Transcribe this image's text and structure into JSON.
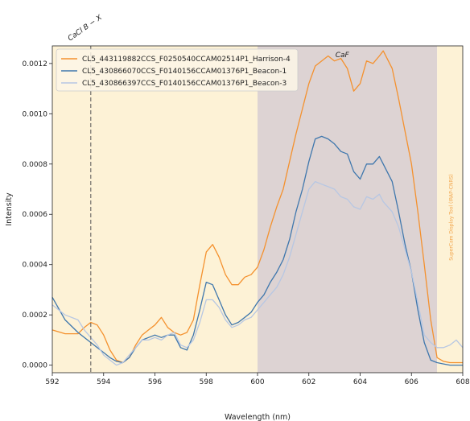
{
  "chart_data": {
    "type": "line",
    "xlabel": "Wavelength (nm)",
    "ylabel": "Intensity",
    "xlim": [
      592,
      608
    ],
    "ylim": [
      -3e-05,
      0.00127
    ],
    "xticks": [
      592,
      594,
      596,
      598,
      600,
      602,
      604,
      606,
      608
    ],
    "yticks": [
      0.0,
      0.0002,
      0.0004,
      0.0006,
      0.0008,
      0.001,
      0.0012
    ],
    "ytick_labels": [
      "0.0000",
      "0.0002",
      "0.0004",
      "0.0006",
      "0.0008",
      "0.0010",
      "0.0012"
    ],
    "grid": false,
    "legend_position": "top-left",
    "regions": [
      {
        "x0": 592,
        "x1": 600,
        "color": "#fdf2d6"
      },
      {
        "x0": 600,
        "x1": 607,
        "color": "#ddd3d3",
        "label": "CaF"
      },
      {
        "x0": 607,
        "x1": 608,
        "color": "#fdf2d6"
      }
    ],
    "vline": {
      "x": 593.5,
      "label": "CaCl B − X",
      "style": "dashed"
    },
    "watermark": "SuperCam Display Tool (IRAP-CNRS)",
    "series": [
      {
        "name": "CL5_443119882CCS_F0250540CCAM02514P1_Harrison-4",
        "color": "#f4912e",
        "x": [
          592.0,
          592.5,
          593.0,
          593.25,
          593.5,
          593.75,
          594.0,
          594.25,
          594.5,
          594.75,
          595.0,
          595.25,
          595.5,
          595.75,
          596.0,
          596.25,
          596.5,
          596.75,
          597.0,
          597.25,
          597.5,
          597.75,
          598.0,
          598.25,
          598.5,
          598.75,
          599.0,
          599.25,
          599.5,
          599.75,
          600.0,
          600.25,
          600.5,
          600.75,
          601.0,
          601.25,
          601.5,
          601.75,
          602.0,
          602.25,
          602.5,
          602.75,
          603.0,
          603.25,
          603.5,
          603.75,
          604.0,
          604.25,
          604.5,
          604.75,
          604.9,
          605.25,
          605.5,
          605.75,
          606.0,
          606.25,
          606.5,
          606.75,
          607.0,
          607.25,
          607.5,
          607.75,
          608.0
        ],
        "y": [
          0.00014,
          0.000125,
          0.000125,
          0.00015,
          0.00017,
          0.00016,
          0.00012,
          6e-05,
          2e-05,
          1e-05,
          3e-05,
          8e-05,
          0.00012,
          0.00014,
          0.00016,
          0.00019,
          0.00015,
          0.00013,
          0.00012,
          0.00013,
          0.00018,
          0.00032,
          0.00045,
          0.00048,
          0.00043,
          0.00036,
          0.00032,
          0.00032,
          0.00035,
          0.00036,
          0.00039,
          0.00046,
          0.00055,
          0.00063,
          0.0007,
          0.00081,
          0.00092,
          0.00102,
          0.00112,
          0.00119,
          0.00121,
          0.00123,
          0.00121,
          0.00122,
          0.00118,
          0.00109,
          0.00112,
          0.00121,
          0.0012,
          0.00123,
          0.00125,
          0.00118,
          0.00106,
          0.00093,
          0.0008,
          0.00061,
          0.0004,
          0.00018,
          3e-05,
          1.5e-05,
          1e-05,
          1e-05,
          1e-05
        ]
      },
      {
        "name": "CL5_430866070CCS_F0140156CCAM01376P1_Beacon-1",
        "color": "#3f77ad",
        "x": [
          592.0,
          592.5,
          593.0,
          593.25,
          593.5,
          593.75,
          594.0,
          594.25,
          594.5,
          594.75,
          595.0,
          595.25,
          595.5,
          595.75,
          596.0,
          596.25,
          596.5,
          596.75,
          597.0,
          597.25,
          597.5,
          597.75,
          598.0,
          598.25,
          598.5,
          598.75,
          599.0,
          599.25,
          599.5,
          599.75,
          600.0,
          600.25,
          600.5,
          600.75,
          601.0,
          601.25,
          601.5,
          601.75,
          602.0,
          602.25,
          602.5,
          602.75,
          603.0,
          603.25,
          603.5,
          603.75,
          604.0,
          604.25,
          604.5,
          604.75,
          604.9,
          605.25,
          605.5,
          605.75,
          606.0,
          606.25,
          606.5,
          606.75,
          607.0,
          607.25,
          607.5,
          607.75,
          608.0
        ],
        "y": [
          0.00027,
          0.00018,
          0.00013,
          0.00011,
          9e-05,
          7e-05,
          5e-05,
          3e-05,
          1.5e-05,
          1e-05,
          3e-05,
          7e-05,
          0.0001,
          0.00011,
          0.00012,
          0.00011,
          0.00012,
          0.00012,
          7e-05,
          6e-05,
          0.00012,
          0.00022,
          0.00033,
          0.00032,
          0.00026,
          0.0002,
          0.00016,
          0.00017,
          0.00019,
          0.00021,
          0.00025,
          0.00028,
          0.00033,
          0.00037,
          0.00042,
          0.0005,
          0.00061,
          0.0007,
          0.00081,
          0.0009,
          0.00091,
          0.0009,
          0.00088,
          0.00085,
          0.00084,
          0.00077,
          0.00074,
          0.0008,
          0.0008,
          0.00083,
          0.0008,
          0.00073,
          0.00061,
          0.00048,
          0.00037,
          0.00022,
          9e-05,
          2e-05,
          1e-05,
          5e-06,
          0.0,
          0.0,
          0.0
        ]
      },
      {
        "name": "CL5_430866397CCS_F0140156CCAM01376P1_Beacon-3",
        "color": "#b7c7e3",
        "x": [
          592.0,
          592.5,
          593.0,
          593.25,
          593.5,
          593.75,
          594.0,
          594.25,
          594.5,
          594.75,
          595.0,
          595.25,
          595.5,
          595.75,
          596.0,
          596.25,
          596.5,
          596.75,
          597.0,
          597.25,
          597.5,
          597.75,
          598.0,
          598.25,
          598.5,
          598.75,
          599.0,
          599.25,
          599.5,
          599.75,
          600.0,
          600.25,
          600.5,
          600.75,
          601.0,
          601.25,
          601.5,
          601.75,
          602.0,
          602.25,
          602.5,
          602.75,
          603.0,
          603.25,
          603.5,
          603.75,
          604.0,
          604.25,
          604.5,
          604.75,
          604.9,
          605.25,
          605.5,
          605.75,
          606.0,
          606.25,
          606.5,
          606.75,
          607.0,
          607.25,
          607.5,
          607.75,
          608.0
        ],
        "y": [
          0.00024,
          0.0002,
          0.00018,
          0.00014,
          0.00011,
          8e-05,
          4e-05,
          2e-05,
          0.0,
          1e-05,
          4e-05,
          7e-05,
          0.0001,
          0.0001,
          0.00011,
          0.0001,
          0.00012,
          0.00013,
          8e-05,
          7e-05,
          0.0001,
          0.00017,
          0.00026,
          0.00026,
          0.00023,
          0.00018,
          0.00015,
          0.00016,
          0.00018,
          0.00019,
          0.00022,
          0.00025,
          0.00028,
          0.00031,
          0.00036,
          0.00043,
          0.00052,
          0.00061,
          0.0007,
          0.00073,
          0.00072,
          0.00071,
          0.0007,
          0.00067,
          0.00066,
          0.00063,
          0.00062,
          0.00067,
          0.00066,
          0.00068,
          0.00065,
          0.00061,
          0.00055,
          0.00046,
          0.00037,
          0.00025,
          0.00012,
          9e-05,
          7e-05,
          7e-05,
          8e-05,
          0.0001,
          7e-05
        ]
      }
    ]
  }
}
